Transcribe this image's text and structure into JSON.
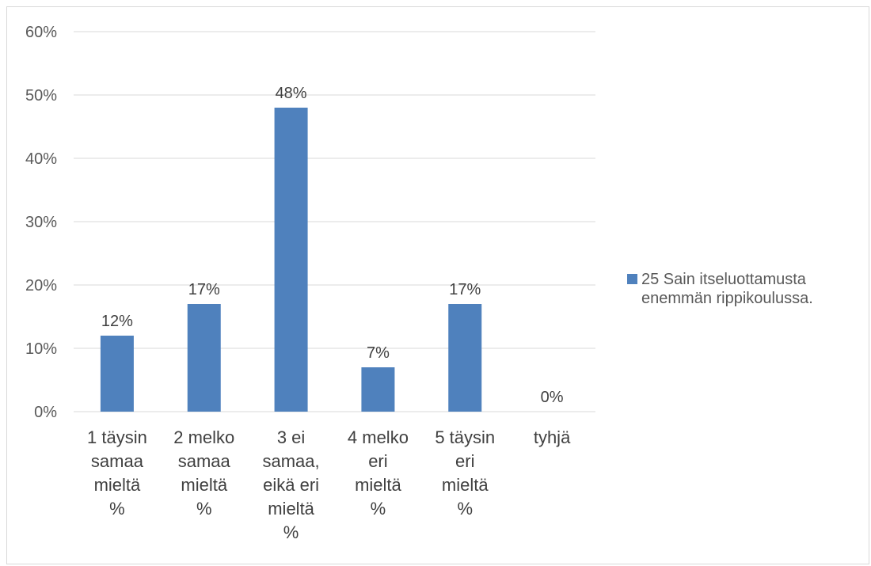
{
  "chart_data": {
    "type": "bar",
    "title": "",
    "xlabel": "",
    "ylabel": "",
    "categories": [
      [
        "1 täysin",
        "samaa",
        "mieltä",
        "%"
      ],
      [
        "2 melko",
        "samaa",
        "mieltä",
        "%"
      ],
      [
        "3 ei",
        "samaa,",
        "eikä eri",
        "mieltä",
        "%"
      ],
      [
        "4 melko",
        "eri",
        "mieltä",
        "%"
      ],
      [
        "5 täysin",
        "eri",
        "mieltä",
        "%"
      ],
      [
        "tyhjä"
      ]
    ],
    "series": [
      {
        "name": "25 Sain itseluottamusta enemmän rippikoulussa.",
        "legend_lines": [
          "25 Sain itseluottamusta",
          "enemmän rippikoulussa."
        ],
        "values": [
          12,
          17,
          48,
          7,
          17,
          0
        ],
        "labels": [
          "12%",
          "17%",
          "48%",
          "7%",
          "17%",
          "0%"
        ],
        "color": "#4f81bd"
      }
    ],
    "ylim": [
      0,
      60
    ],
    "yticks": [
      0,
      10,
      20,
      30,
      40,
      50,
      60
    ],
    "ytick_labels": [
      "0%",
      "10%",
      "20%",
      "30%",
      "40%",
      "50%",
      "60%"
    ],
    "grid": true,
    "legend_position": "right",
    "colors": {
      "bar": "#4f81bd",
      "grid": "#d9d9d9"
    }
  }
}
